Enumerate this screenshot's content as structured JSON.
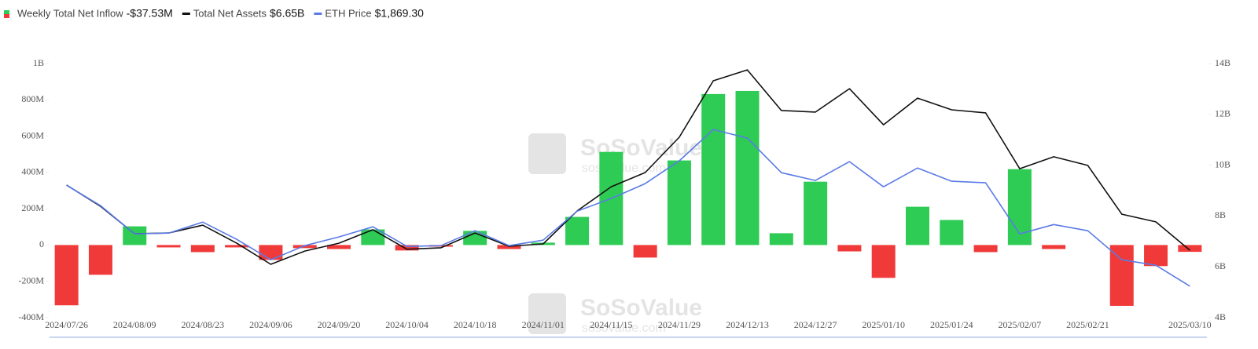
{
  "chart_data": {
    "type": "bar-line",
    "categories": [
      "2024/07/26",
      null,
      "2024/08/09",
      null,
      "2024/08/23",
      null,
      "2024/09/06",
      null,
      "2024/09/20",
      null,
      "2024/10/04",
      null,
      "2024/10/18",
      null,
      "2024/11/01",
      null,
      "2024/11/15",
      null,
      "2024/11/29",
      null,
      "2024/12/13",
      null,
      "2024/12/27",
      null,
      "2025/01/10",
      null,
      "2025/01/24",
      null,
      "2025/02/07",
      null,
      "2025/02/21",
      null,
      null,
      "2025/03/10"
    ],
    "series": [
      {
        "name": "Weekly Total Net Inflow",
        "legend_value": "-$37.53M",
        "type": "bar",
        "axis": "y",
        "positive_color": "#2ecc55",
        "negative_color": "#f03a3a",
        "values": [
          -332,
          -164,
          103,
          -13,
          -39,
          -13,
          -82,
          -17,
          -22,
          86,
          -30,
          -9,
          78,
          -22,
          13,
          155,
          513,
          -69,
          466,
          832,
          849,
          65,
          349,
          -35,
          -181,
          211,
          138,
          -39,
          418,
          -22,
          0,
          -335,
          -116,
          -37.53
        ]
      },
      {
        "name": "Total Net Assets",
        "legend_value": "$6.65B",
        "type": "line",
        "axis": "y2",
        "color": "#111111",
        "values": [
          9.22,
          8.38,
          7.3,
          7.33,
          7.64,
          6.93,
          6.1,
          6.62,
          6.93,
          7.46,
          6.69,
          6.75,
          7.33,
          6.81,
          6.9,
          8.2,
          9.15,
          9.71,
          11.1,
          13.32,
          13.75,
          12.15,
          12.09,
          13.01,
          11.59,
          12.64,
          12.18,
          12.06,
          9.86,
          10.33,
          9.99,
          8.07,
          7.77,
          6.65
        ]
      },
      {
        "name": "ETH Price",
        "legend_value": "$1,869.30",
        "type": "line",
        "axis": "y3",
        "color": "#5b7be6",
        "values": [
          3280,
          2995,
          2600,
          2611,
          2765,
          2524,
          2239,
          2436,
          2557,
          2699,
          2425,
          2436,
          2644,
          2436,
          2513,
          2918,
          3094,
          3302,
          3620,
          4058,
          3938,
          3455,
          3346,
          3609,
          3258,
          3521,
          3335,
          3313,
          2600,
          2731,
          2644,
          2239,
          2162,
          1869.3
        ]
      }
    ],
    "ylim": [
      -400,
      1000
    ],
    "yticks": [
      {
        "value": -400,
        "label": "-400M"
      },
      {
        "value": -200,
        "label": "-200M"
      },
      0,
      {
        "value": 200,
        "label": "200M"
      },
      {
        "value": 400,
        "label": "400M"
      },
      {
        "value": 600,
        "label": "600M"
      },
      {
        "value": 800,
        "label": "800M"
      },
      {
        "value": 1000,
        "label": "1B"
      }
    ],
    "y2lim": [
      4,
      14
    ],
    "y2ticks": [
      {
        "value": 4,
        "label": "4B"
      },
      {
        "value": 6,
        "label": "6B"
      },
      {
        "value": 8,
        "label": "8B"
      },
      {
        "value": 10,
        "label": "10B"
      },
      {
        "value": 12,
        "label": "12B"
      },
      {
        "value": 14,
        "label": "14B"
      }
    ],
    "y3lim": [
      1430,
      4980
    ],
    "watermark": {
      "brand": "SoSoValue",
      "site": "sosovalue.com"
    }
  }
}
